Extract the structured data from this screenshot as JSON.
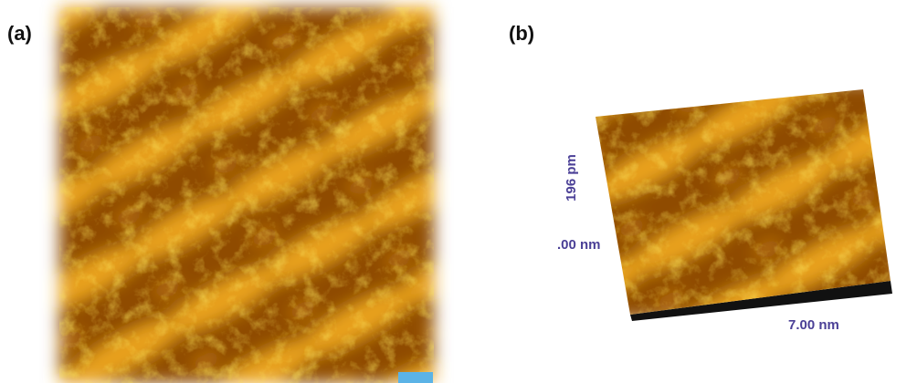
{
  "panels": [
    {
      "label": "(a)"
    },
    {
      "label": "(b)",
      "axis_labels": {
        "z": "196 pm",
        "origin": ".00 nm",
        "x": "7.00 nm"
      }
    }
  ]
}
